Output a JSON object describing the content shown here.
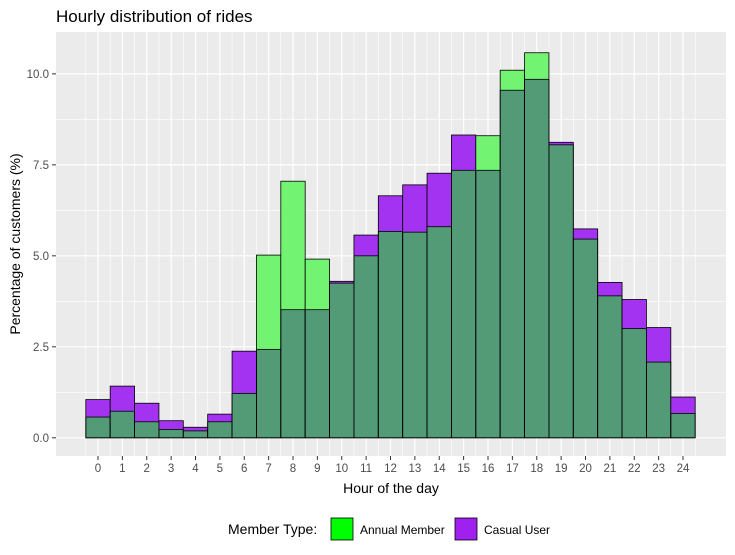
{
  "chart_data": {
    "type": "bar",
    "title": "Hourly distribution of rides",
    "xlabel": "Hour of the day",
    "ylabel": "Percentage of customers (%)",
    "categories": [
      "0",
      "1",
      "2",
      "3",
      "4",
      "5",
      "6",
      "7",
      "8",
      "9",
      "10",
      "11",
      "12",
      "13",
      "14",
      "15",
      "16",
      "17",
      "18",
      "19",
      "20",
      "21",
      "22",
      "23",
      "24"
    ],
    "ylim": [
      -0.5,
      11.15
    ],
    "yticks": [
      0.0,
      2.5,
      5.0,
      7.5,
      10.0
    ],
    "ytick_labels": [
      "0.0",
      "2.5",
      "5.0",
      "7.5",
      "10.0"
    ],
    "grid": true,
    "bar_mode": "overlay",
    "series": [
      {
        "name": "Annual Member",
        "color": "#00ff00",
        "values": [
          0.57,
          0.73,
          0.44,
          0.23,
          0.19,
          0.44,
          1.22,
          5.02,
          7.05,
          4.91,
          4.25,
          5.0,
          5.67,
          5.65,
          5.8,
          7.35,
          8.3,
          10.1,
          10.58,
          8.05,
          5.46,
          3.9,
          3.0,
          2.08,
          0.67
        ]
      },
      {
        "name": "Casual User",
        "color": "#a020f0",
        "values": [
          1.05,
          1.42,
          0.95,
          0.47,
          0.29,
          0.65,
          2.38,
          2.43,
          3.52,
          3.52,
          4.3,
          5.57,
          6.65,
          6.95,
          7.27,
          8.32,
          7.35,
          9.55,
          9.85,
          8.12,
          5.74,
          4.27,
          3.8,
          3.03,
          1.12
        ]
      }
    ],
    "legend": {
      "position": "bottom",
      "title": "Member Type:",
      "entries": [
        "Annual Member",
        "Casual User"
      ]
    },
    "colors": {
      "annual": "#00ff00",
      "casual": "#a020f0",
      "panel_background": "#ebebeb",
      "grid": "#ffffff",
      "bar_outline": "#000000"
    }
  }
}
